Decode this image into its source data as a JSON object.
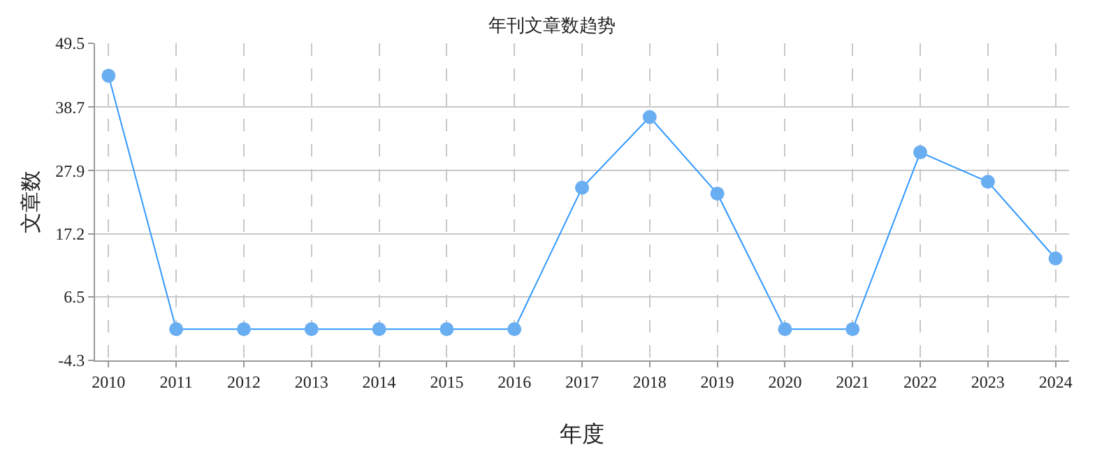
{
  "chart_data": {
    "type": "line",
    "title": "年刊文章数趋势",
    "xlabel": "年度",
    "ylabel": "文章数",
    "categories": [
      "2010",
      "2011",
      "2012",
      "2013",
      "2014",
      "2015",
      "2016",
      "2017",
      "2018",
      "2019",
      "2020",
      "2021",
      "2022",
      "2023",
      "2024"
    ],
    "series": [
      {
        "color": "#3399ff",
        "values": [
          44,
          1,
          1,
          1,
          1,
          1,
          1,
          25,
          37,
          24,
          1,
          1,
          31,
          26,
          13
        ]
      }
    ],
    "ylim": [
      -4.3,
      49.5
    ],
    "yticks": [
      -4.3,
      6.5,
      17.2,
      27.9,
      38.7,
      49.5
    ],
    "grid": true,
    "marker": "circle",
    "line_style": "solid"
  }
}
